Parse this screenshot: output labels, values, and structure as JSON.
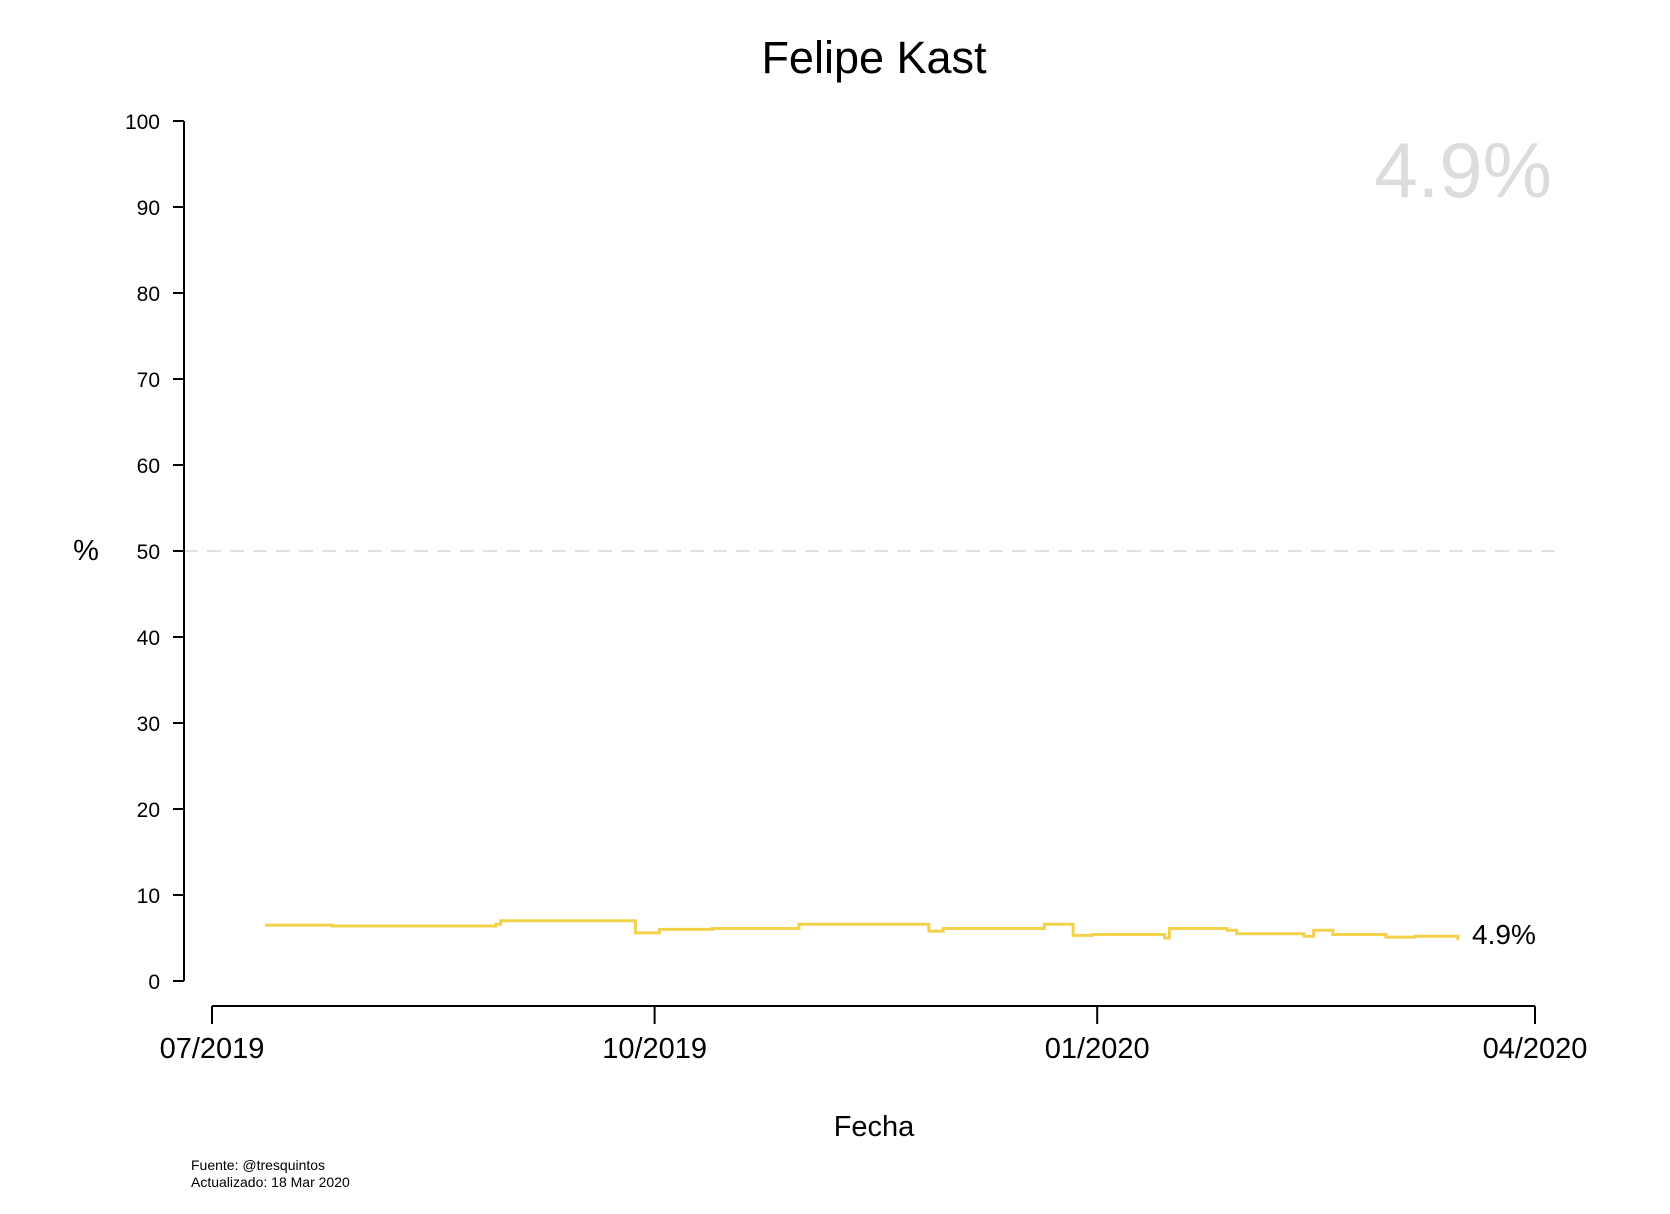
{
  "chart_data": {
    "type": "line",
    "step": true,
    "title": "Felipe Kast",
    "highlight_value": "4.9%",
    "end_label": "4.9%",
    "xlabel": "Fecha",
    "ylabel": "%",
    "ylim": [
      0,
      100
    ],
    "yticks": [
      "0",
      "10",
      "20",
      "30",
      "40",
      "50",
      "60",
      "70",
      "80",
      "90",
      "100"
    ],
    "xlim": [
      "2019-07-01",
      "2020-04-01"
    ],
    "xticks": [
      {
        "date": "2019-07-01",
        "label": "07/2019"
      },
      {
        "date": "2019-10-01",
        "label": "10/2019"
      },
      {
        "date": "2020-01-01",
        "label": "01/2020"
      },
      {
        "date": "2020-04-01",
        "label": "04/2020"
      }
    ],
    "reference_line": {
      "y": 50,
      "style": "dashed",
      "color": "#d9d9d9"
    },
    "grid": false,
    "series": [
      {
        "color": "#f2d24b",
        "points": [
          {
            "x": "2019-07-12",
            "y": 6.5
          },
          {
            "x": "2019-07-26",
            "y": 6.4
          },
          {
            "x": "2019-08-29",
            "y": 6.6
          },
          {
            "x": "2019-08-30",
            "y": 7.0
          },
          {
            "x": "2019-09-27",
            "y": 5.6
          },
          {
            "x": "2019-10-02",
            "y": 6.0
          },
          {
            "x": "2019-10-13",
            "y": 6.1
          },
          {
            "x": "2019-10-31",
            "y": 6.6
          },
          {
            "x": "2019-11-27",
            "y": 5.8
          },
          {
            "x": "2019-11-30",
            "y": 6.1
          },
          {
            "x": "2019-12-21",
            "y": 6.6
          },
          {
            "x": "2019-12-27",
            "y": 5.3
          },
          {
            "x": "2019-12-31",
            "y": 5.4
          },
          {
            "x": "2020-01-15",
            "y": 5.0
          },
          {
            "x": "2020-01-16",
            "y": 6.1
          },
          {
            "x": "2020-01-28",
            "y": 5.9
          },
          {
            "x": "2020-01-30",
            "y": 5.5
          },
          {
            "x": "2020-02-13",
            "y": 5.2
          },
          {
            "x": "2020-02-15",
            "y": 5.9
          },
          {
            "x": "2020-02-19",
            "y": 5.4
          },
          {
            "x": "2020-03-01",
            "y": 5.1
          },
          {
            "x": "2020-03-07",
            "y": 5.2
          },
          {
            "x": "2020-03-16",
            "y": 4.9
          }
        ]
      }
    ]
  },
  "footer": {
    "source": "Fuente: @tresquintos",
    "updated": "Actualizado: 18 Mar 2020"
  }
}
